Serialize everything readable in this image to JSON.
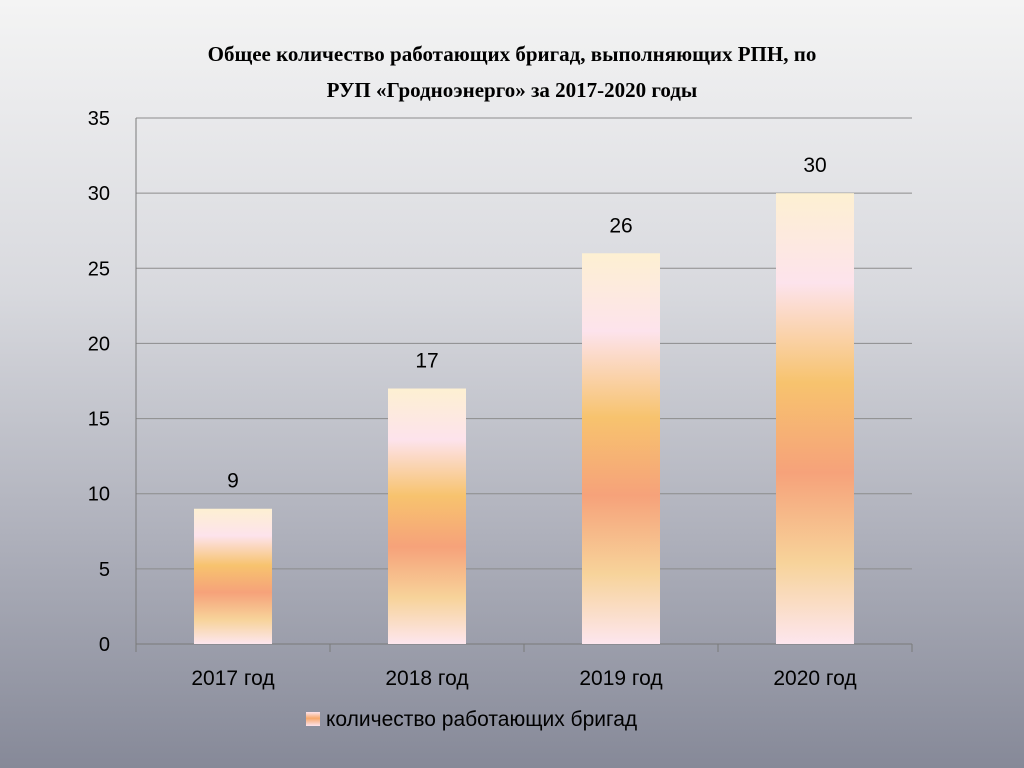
{
  "chart_data": {
    "type": "bar",
    "title_lines": [
      "Общее количество работающих бригад, выполняющих РПН, по",
      "РУП «Гродноэнерго» за 2017-2020 годы"
    ],
    "categories": [
      "2017 год",
      "2018 год",
      "2019 год",
      "2020 год"
    ],
    "series": [
      {
        "name": "количество работающих бригад",
        "values": [
          9,
          17,
          26,
          30
        ]
      }
    ],
    "ylim": [
      0,
      35
    ],
    "yticks": [
      0,
      5,
      10,
      15,
      20,
      25,
      30,
      35
    ],
    "grid": true,
    "legend_position": "bottom",
    "data_labels": true,
    "xlabel": "",
    "ylabel": ""
  }
}
